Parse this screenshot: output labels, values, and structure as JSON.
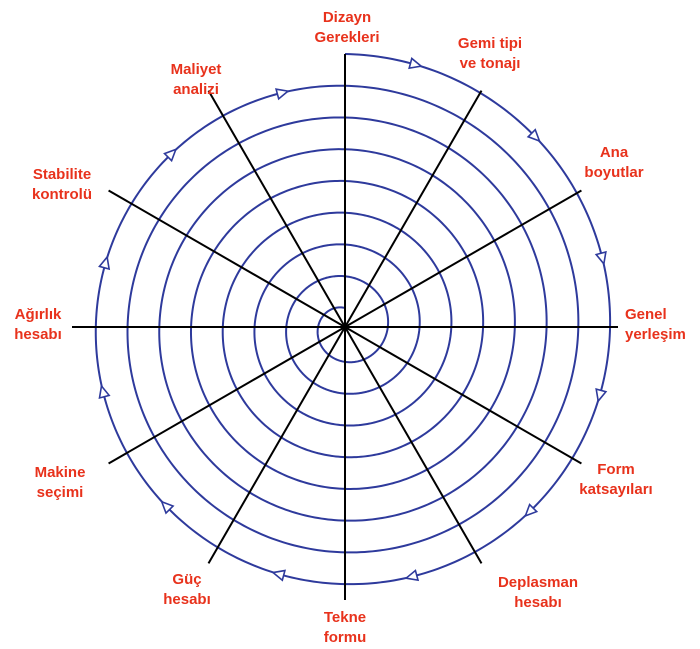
{
  "stages": [
    {
      "id": "dizayn-gerekleri",
      "line1": "Dizayn",
      "line2": "Gerekleri"
    },
    {
      "id": "gemi-tipi",
      "line1": "Gemi tipi",
      "line2": "ve tonajı"
    },
    {
      "id": "ana-boyutlar",
      "line1": "Ana",
      "line2": "boyutlar"
    },
    {
      "id": "genel-yerlesim",
      "line1": "Genel",
      "line2": "yerleşim"
    },
    {
      "id": "form-katsayilari",
      "line1": "Form",
      "line2": "katsayıları"
    },
    {
      "id": "deplasman-hesabi",
      "line1": "Deplasman",
      "line2": "hesabı"
    },
    {
      "id": "tekne-formu",
      "line1": "Tekne",
      "line2": "formu"
    },
    {
      "id": "guc-hesabi",
      "line1": "Güç",
      "line2": "hesabı"
    },
    {
      "id": "makine-secimi",
      "line1": "Makine",
      "line2": "seçimi"
    },
    {
      "id": "agirlik-hesabi",
      "line1": "Ağırlık",
      "line2": "hesabı"
    },
    {
      "id": "stabilite-kontrolu",
      "line1": "Stabilite",
      "line2": "kontrolü"
    },
    {
      "id": "maliyet-analizi",
      "line1": "Maliyet",
      "line2": "analizi"
    }
  ],
  "colors": {
    "spiral": "#2e3a9c",
    "spoke": "#000000",
    "label": "#e8321c"
  }
}
